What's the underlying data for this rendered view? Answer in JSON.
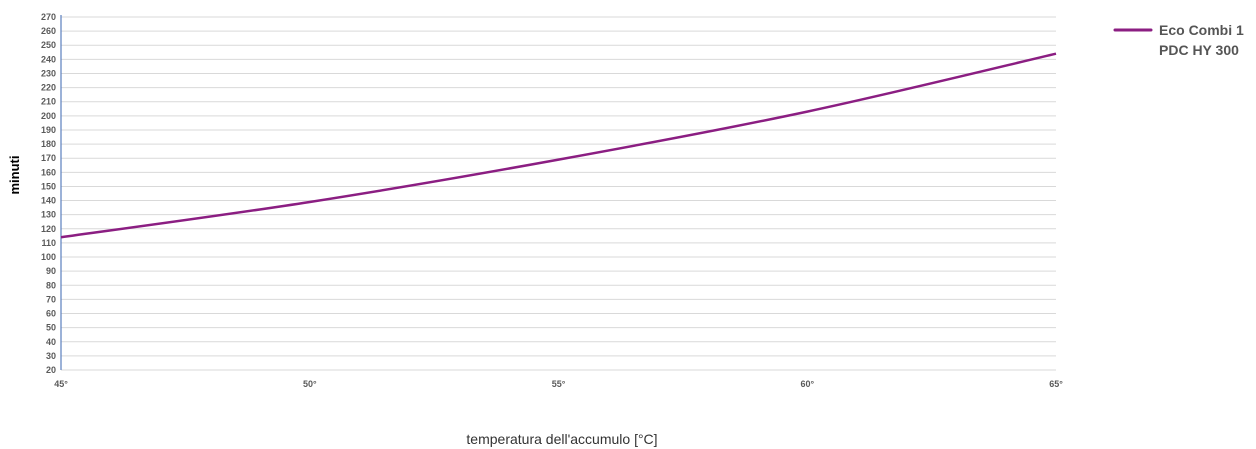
{
  "chart_data": {
    "type": "line",
    "x": [
      "45°",
      "50°",
      "55°",
      "60°",
      "65°"
    ],
    "series": [
      {
        "name": "Eco Combi 1 PDC HY 300",
        "values": [
          114,
          139,
          169,
          203,
          244
        ],
        "color": "#8b1e82"
      }
    ],
    "xlabel": "temperatura dell'accumulo [°C]",
    "ylabel": "minuti",
    "ylim": [
      20,
      270
    ],
    "yticks": [
      20,
      30,
      40,
      50,
      60,
      70,
      80,
      90,
      100,
      110,
      120,
      130,
      140,
      150,
      160,
      170,
      180,
      190,
      200,
      210,
      220,
      230,
      240,
      250,
      260,
      270
    ],
    "grid": true,
    "legend_position": "top-right"
  },
  "legend": {
    "line1": "Eco Combi 1",
    "line2": "PDC HY 300"
  },
  "colors": {
    "axis": "#5b7fbf",
    "grid": "#d9d9d9"
  }
}
